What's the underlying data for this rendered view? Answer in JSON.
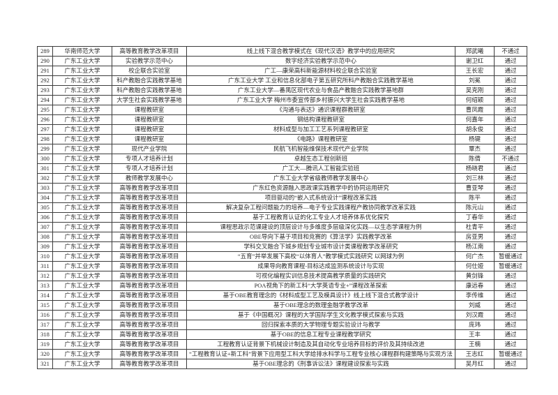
{
  "document": {
    "kind": "评审结果表",
    "page_background": "#ffffff"
  },
  "colors": {
    "table_border": "#3c3c3c",
    "text": "#2a2a2a"
  },
  "table": {
    "column_keys": [
      "no",
      "university",
      "type",
      "title",
      "leader",
      "status"
    ],
    "rows": [
      {
        "no": "289",
        "university": "华南师范大学",
        "type": "高等教育教学改革项目",
        "title": "线上线下混合教学模式在《现代汉语》教学中的应用研究",
        "leader": "郑武曦",
        "status": "不通过"
      },
      {
        "no": "290",
        "university": "广东工业大学",
        "type": "实验教学示范中心",
        "title": "数字经济实验教学示范中心",
        "leader": "谢卫红",
        "status": "通过"
      },
      {
        "no": "291",
        "university": "广东工业大学",
        "type": "校企联合实验室",
        "title": "广工—康荣高科新能源材料校企联合实验室",
        "leader": "王长宏",
        "status": "通过"
      },
      {
        "no": "292",
        "university": "广东工业大学",
        "type": "科产教融合实践教学基地",
        "title": "广东工业大学 工业和信息化部电子第五研究所科产教融合实践教学基地",
        "leader": "刘冕",
        "status": "通过"
      },
      {
        "no": "293",
        "university": "广东工业大学",
        "type": "科产教融合实践教学基地",
        "title": "广东工业大学—番禺区现代农业与食品产教融合实践教学基地群",
        "leader": "吴克刚",
        "status": "通过"
      },
      {
        "no": "294",
        "university": "广东工业大学",
        "type": "大学生社会实践教学基地",
        "title": "广东工业大学 梅州市委宣传部乡村振兴大学生社会实践教学基地",
        "leader": "何绍颖",
        "status": "通过"
      },
      {
        "no": "295",
        "university": "广东工业大学",
        "type": "课程教研室",
        "title": "《沟通与表达》通识课程群教研室",
        "leader": "曹凤霞",
        "status": "通过"
      },
      {
        "no": "296",
        "university": "广东工业大学",
        "type": "课程教研室",
        "title": "钢结构课程教研室",
        "leader": "何嘉年",
        "status": "通过"
      },
      {
        "no": "297",
        "university": "广东工业大学",
        "type": "课程教研室",
        "title": "材料成型与加工工艺系列课程教研室",
        "leader": "胡永俊",
        "status": "通过"
      },
      {
        "no": "298",
        "university": "广东工业大学",
        "type": "课程教研室",
        "title": "《电路》课程教研室",
        "leader": "杨键",
        "status": "通过"
      },
      {
        "no": "299",
        "university": "广东工业大学",
        "type": "现代产业学院",
        "title": "民航飞机智能维保技术现代产业学院",
        "leader": "覃杰",
        "status": "通过"
      },
      {
        "no": "300",
        "university": "广东工业大学",
        "type": "专项人才培养计划",
        "title": "卓越生态工程创新班",
        "leader": "陈倩",
        "status": "不通过"
      },
      {
        "no": "301",
        "university": "广东工业大学",
        "type": "专项人才培养计划",
        "title": "广工大—腾讯人工智能实验班",
        "leader": "杨晓君",
        "status": "通过"
      },
      {
        "no": "302",
        "university": "广东工业大学",
        "type": "教师教学发展中心",
        "title": "广东工业大学省级教师教学发展中心",
        "leader": "刘三林",
        "status": "通过"
      },
      {
        "no": "303",
        "university": "广东工业大学",
        "type": "高等教育教学改革项目",
        "title": "广东红色资源融入思政课实践教学中的协同运用研究",
        "leader": "曹亚琴",
        "status": "通过"
      },
      {
        "no": "304",
        "university": "广东工业大学",
        "type": "高等教育教学改革项目",
        "title": "项目驱动的“嵌入式系统设计”课程改革实践",
        "leader": "陈平",
        "status": "通过"
      },
      {
        "no": "305",
        "university": "广东工业大学",
        "type": "高等教育教学改革项目",
        "title": "解决复杂工程问题能力的培养—电子专业实践课程产教协同教学改革实践",
        "leader": "陈元山",
        "status": "通过"
      },
      {
        "no": "306",
        "university": "广东工业大学",
        "type": "高等教育教学改革项目",
        "title": "基于工程教育认证的化工专业人才培养体系优化探究",
        "leader": "丁春华",
        "status": "通过"
      },
      {
        "no": "307",
        "university": "广东工业大学",
        "type": "高等教育教学改革项目",
        "title": "课程思政示范课建设的顶层设计与多维度多层级深化实践—以生态学课程为例",
        "leader": "杜青平",
        "status": "通过"
      },
      {
        "no": "308",
        "university": "广东工业大学",
        "type": "高等教育教学改革项目",
        "title": "OBE导向下基于项目和竞赛的《算法学》实践教学改革",
        "leader": "房亚男",
        "status": "通过"
      },
      {
        "no": "309",
        "university": "广东工业大学",
        "type": "高等教育教学改革项目",
        "title": "学科交叉融合下城乡规划专业城市设计类课程教学改革研究",
        "leader": "杨江南",
        "status": "通过"
      },
      {
        "no": "310",
        "university": "广东工业大学",
        "type": "高等教育教学改革项目",
        "title": "“五育”并举发展下高校“以体育人”教学模式实践研究 以网球为例",
        "leader": "何广杰",
        "status": "暂缓通过"
      },
      {
        "no": "311",
        "university": "广东工业大学",
        "type": "高等教育教学改革项目",
        "title": "成果导向教育课程-目标达成监测系统设计与实现",
        "leader": "何仕娅",
        "status": "暂缓通过"
      },
      {
        "no": "312",
        "university": "广东工业大学",
        "type": "高等教育教学改革项目",
        "title": "可视化编程实训信息技术提高教学质量的实践研究",
        "leader": "黄剑锋",
        "status": "通过"
      },
      {
        "no": "313",
        "university": "广东工业大学",
        "type": "高等教育教学改革项目",
        "title": "POA视角下的新工科“大学英语专业+”课程改革探索",
        "leader": "康远春",
        "status": "通过"
      },
      {
        "no": "314",
        "university": "广东工业大学",
        "type": "高等教育教学改革项目",
        "title": "基于OBE教育理念的《材料成型工艺及模具设计》线上线下混合式教学设计",
        "leader": "李传维",
        "status": "通过"
      },
      {
        "no": "315",
        "university": "广东工业大学",
        "type": "高等教育教学改革项目",
        "title": "基于OBE理念的数理金融学教学改革",
        "leader": "刘威",
        "status": "通过"
      },
      {
        "no": "316",
        "university": "广东工业大学",
        "type": "高等教育教学改革项目",
        "title": "基于《中国概况》课程的大学国际学生文化教学模式探索与实践",
        "leader": "刘汉霞",
        "status": "通过"
      },
      {
        "no": "317",
        "university": "广东工业大学",
        "type": "高等教育教学改革项目",
        "title": "回归探索本质的大学物理专题实验设计与教学",
        "leader": "庞玮",
        "status": "通过"
      },
      {
        "no": "318",
        "university": "广东工业大学",
        "type": "高等教育教学改革项目",
        "title": "基于OBE的信息工程专业课程教学研究",
        "leader": "王丰",
        "status": "通过"
      },
      {
        "no": "319",
        "university": "广东工业大学",
        "type": "高等教育教学改革项目",
        "title": "工程教育认证背景下机械设计制造及其自动化专业培养目标的评价及其持续改进",
        "leader": "王楠",
        "status": "通过"
      },
      {
        "no": "320",
        "university": "广东工业大学",
        "type": "高等教育教学改革项目",
        "title": "“工程教育认证+新工科”背景下应用型工科大学给排水科学与工程专业核心课程群构建策略与实现方法",
        "leader": "王志红",
        "status": "暂缓通过"
      },
      {
        "no": "321",
        "university": "广东工业大学",
        "type": "高等教育教学改革项目",
        "title": "基于OBE理念的《刑事诉讼法》课程建设探索与实践",
        "leader": "吴月红",
        "status": "通过"
      }
    ]
  }
}
